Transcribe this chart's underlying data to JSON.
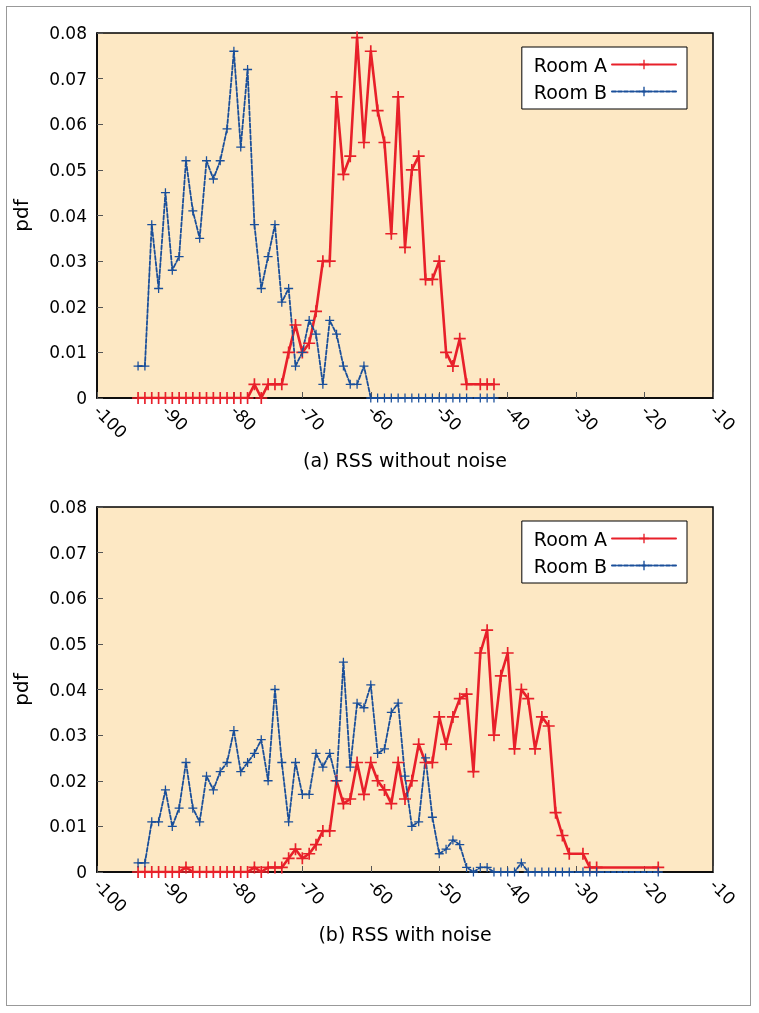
{
  "chart_data": [
    {
      "type": "line",
      "xlabel": "(a) RSS without noise",
      "ylabel": "pdf",
      "xlim": [
        -100,
        -10
      ],
      "xticks": [
        -100,
        -90,
        -80,
        -70,
        -60,
        -50,
        -40,
        -30,
        -20,
        -10
      ],
      "ylim": [
        0,
        0.08
      ],
      "yticks": [
        0,
        0.01,
        0.02,
        0.03,
        0.04,
        0.05,
        0.06,
        0.07,
        0.08
      ],
      "grid": false,
      "legend": "top right",
      "series": [
        {
          "name": "Room A",
          "color": "#e8202a",
          "marker": "cross",
          "line_style": "solid",
          "x": [
            -94,
            -93,
            -92,
            -91,
            -90,
            -89,
            -88,
            -87,
            -86,
            -85,
            -84,
            -83,
            -82,
            -81,
            -80,
            -79,
            -78,
            -77,
            -76,
            -75,
            -74,
            -73,
            -72,
            -71,
            -70,
            -69,
            -68,
            -67,
            -66,
            -65,
            -64,
            -63,
            -62,
            -61,
            -60,
            -59,
            -58,
            -57,
            -56,
            -55,
            -54,
            -53,
            -52,
            -51,
            -50,
            -49,
            -48,
            -47,
            -46,
            -44,
            -43,
            -42
          ],
          "values": [
            0,
            0,
            0,
            0,
            0,
            0,
            0,
            0,
            0,
            0,
            0,
            0,
            0,
            0,
            0,
            0,
            0,
            0.003,
            0,
            0.003,
            0.003,
            0.003,
            0.01,
            0.016,
            0.01,
            0.012,
            0.019,
            0.03,
            0.03,
            0.066,
            0.049,
            0.053,
            0.079,
            0.056,
            0.076,
            0.063,
            0.056,
            0.036,
            0.066,
            0.033,
            0.05,
            0.053,
            0.026,
            0.026,
            0.03,
            0.01,
            0.007,
            0.013,
            0.003,
            0.003,
            0.003,
            0.003
          ]
        },
        {
          "name": "Room B",
          "color": "#1a4f9a",
          "marker": "cross",
          "line_style": "dashed",
          "x": [
            -94,
            -93,
            -92,
            -91,
            -90,
            -89,
            -88,
            -87,
            -86,
            -85,
            -84,
            -83,
            -82,
            -81,
            -80,
            -79,
            -78,
            -77,
            -76,
            -75,
            -74,
            -73,
            -72,
            -71,
            -70,
            -69,
            -68,
            -67,
            -66,
            -65,
            -64,
            -63,
            -62,
            -61,
            -60,
            -59,
            -58,
            -57,
            -56,
            -55,
            -54,
            -53,
            -52,
            -51,
            -50,
            -49,
            -48,
            -47,
            -46,
            -44,
            -43,
            -42
          ],
          "values": [
            0.007,
            0.007,
            0.038,
            0.024,
            0.045,
            0.028,
            0.031,
            0.052,
            0.041,
            0.035,
            0.052,
            0.048,
            0.052,
            0.059,
            0.076,
            0.055,
            0.072,
            0.038,
            0.024,
            0.031,
            0.038,
            0.021,
            0.024,
            0.007,
            0.01,
            0.017,
            0.014,
            0.003,
            0.017,
            0.014,
            0.007,
            0.003,
            0.003,
            0.007,
            0,
            0,
            0,
            0,
            0,
            0,
            0,
            0,
            0,
            0,
            0,
            0,
            0,
            0,
            0,
            0,
            0,
            0
          ]
        }
      ]
    },
    {
      "type": "line",
      "xlabel": "(b) RSS with noise",
      "ylabel": "pdf",
      "xlim": [
        -100,
        -10
      ],
      "xticks": [
        -100,
        -90,
        -80,
        -70,
        -60,
        -50,
        -40,
        -30,
        -20,
        -10
      ],
      "ylim": [
        0,
        0.08
      ],
      "yticks": [
        0,
        0.01,
        0.02,
        0.03,
        0.04,
        0.05,
        0.06,
        0.07,
        0.08
      ],
      "grid": false,
      "legend": "top right",
      "series": [
        {
          "name": "Room A",
          "color": "#e8202a",
          "marker": "cross",
          "line_style": "solid",
          "x": [
            -94,
            -93,
            -92,
            -91,
            -90,
            -89,
            -88,
            -87,
            -86,
            -85,
            -84,
            -83,
            -82,
            -81,
            -80,
            -79,
            -78,
            -77,
            -76,
            -75,
            -74,
            -73,
            -72,
            -71,
            -70,
            -69,
            -68,
            -67,
            -66,
            -65,
            -64,
            -63,
            -62,
            -61,
            -60,
            -59,
            -58,
            -57,
            -56,
            -55,
            -54,
            -53,
            -52,
            -51,
            -50,
            -49,
            -48,
            -47,
            -46,
            -45,
            -44,
            -43,
            -42,
            -41,
            -40,
            -39,
            -38,
            -37,
            -36,
            -35,
            -34,
            -33,
            -32,
            -31,
            -29,
            -28,
            -27,
            -18
          ],
          "values": [
            0,
            0,
            0,
            0,
            0,
            0,
            0,
            0.001,
            0,
            0,
            0,
            0,
            0,
            0,
            0,
            0,
            0,
            0.001,
            0,
            0.001,
            0.001,
            0.001,
            0.003,
            0.005,
            0.003,
            0.004,
            0.006,
            0.009,
            0.009,
            0.02,
            0.015,
            0.016,
            0.024,
            0.017,
            0.024,
            0.02,
            0.018,
            0.015,
            0.024,
            0.016,
            0.02,
            0.028,
            0.024,
            0.024,
            0.034,
            0.028,
            0.034,
            0.038,
            0.039,
            0.022,
            0.048,
            0.053,
            0.03,
            0.043,
            0.048,
            0.027,
            0.04,
            0.038,
            0.027,
            0.034,
            0.032,
            0.013,
            0.008,
            0.004,
            0.004,
            0.001,
            0.001,
            0.001
          ]
        },
        {
          "name": "Room B",
          "color": "#1a4f9a",
          "marker": "cross",
          "line_style": "dashed",
          "x": [
            -94,
            -93,
            -92,
            -91,
            -90,
            -89,
            -88,
            -87,
            -86,
            -85,
            -84,
            -83,
            -82,
            -81,
            -80,
            -79,
            -78,
            -77,
            -76,
            -75,
            -74,
            -73,
            -72,
            -71,
            -70,
            -69,
            -68,
            -67,
            -66,
            -65,
            -64,
            -63,
            -62,
            -61,
            -60,
            -59,
            -58,
            -57,
            -56,
            -55,
            -54,
            -53,
            -52,
            -51,
            -50,
            -49,
            -48,
            -47,
            -46,
            -45,
            -44,
            -43,
            -42,
            -41,
            -40,
            -39,
            -38,
            -37,
            -36,
            -35,
            -34,
            -33,
            -32,
            -31,
            -29,
            -28,
            -27,
            -18
          ],
          "values": [
            0.002,
            0.002,
            0.011,
            0.011,
            0.018,
            0.01,
            0.014,
            0.024,
            0.014,
            0.011,
            0.021,
            0.018,
            0.022,
            0.024,
            0.031,
            0.022,
            0.024,
            0.026,
            0.029,
            0.02,
            0.04,
            0.024,
            0.011,
            0.024,
            0.017,
            0.017,
            0.026,
            0.023,
            0.026,
            0.02,
            0.046,
            0.023,
            0.037,
            0.036,
            0.041,
            0.026,
            0.027,
            0.035,
            0.037,
            0.021,
            0.01,
            0.011,
            0.025,
            0.012,
            0.004,
            0.005,
            0.007,
            0.006,
            0.001,
            0,
            0.001,
            0.001,
            0,
            0,
            0,
            0,
            0.002,
            0,
            0,
            0,
            0,
            0,
            0,
            0,
            0,
            0,
            0,
            0
          ]
        }
      ]
    }
  ]
}
